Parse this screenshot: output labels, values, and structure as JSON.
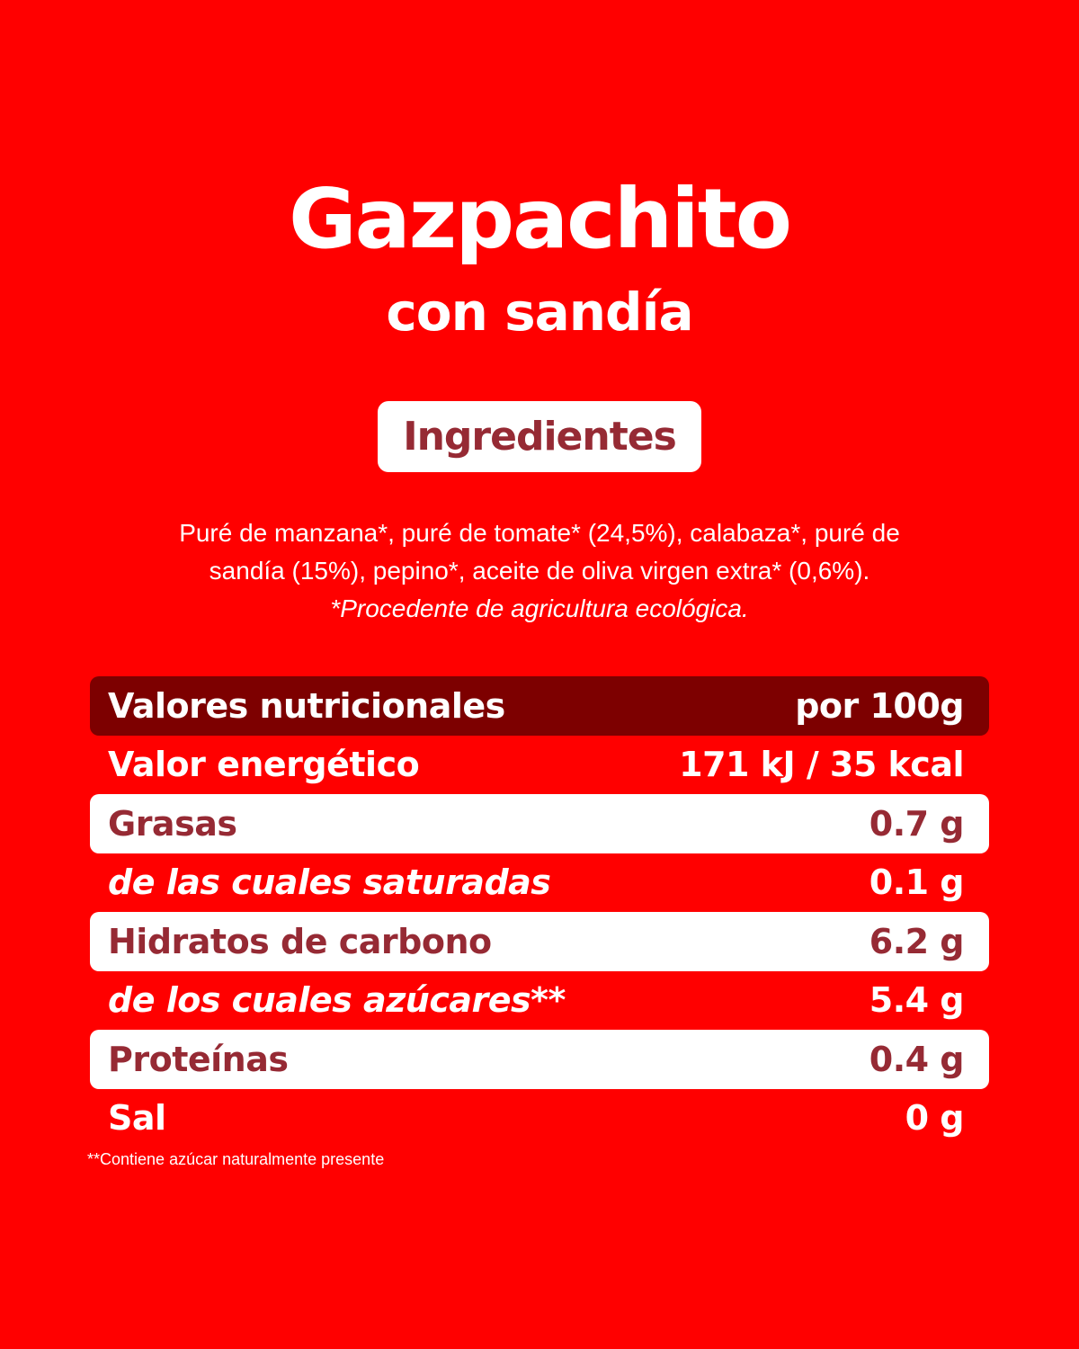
{
  "title": "Gazpachito",
  "subtitle": "con sandía",
  "ingredients_badge": "Ingredientes",
  "ingredients": {
    "line1": "Puré de manzana*, puré de tomate* (24,5%), calabaza*, puré de",
    "line2": "sandía (15%), pepino*, aceite de oliva virgen extra* (0,6%).",
    "note": "*Procedente de agricultura ecológica."
  },
  "nutrition": {
    "header_label": "Valores nutricionales",
    "header_value": "por 100g",
    "rows": [
      {
        "label": "Valor energético",
        "value": "171 kJ / 35 kcal"
      },
      {
        "label": "Grasas",
        "value": "0.7 g"
      },
      {
        "label": "de las cuales saturadas",
        "value": "0.1 g"
      },
      {
        "label": "Hidratos de carbono",
        "value": "6.2 g"
      },
      {
        "label": "de los cuales azúcares**",
        "value": "5.4 g"
      },
      {
        "label": "Proteínas",
        "value": "0.4 g"
      },
      {
        "label": "Sal",
        "value": "0 g"
      }
    ]
  },
  "footnote": "**Contiene azúcar naturalmente presente",
  "colors": {
    "background": "#ff0000",
    "header_row": "#7d0000",
    "accent_text": "#962a34",
    "white": "#ffffff"
  }
}
